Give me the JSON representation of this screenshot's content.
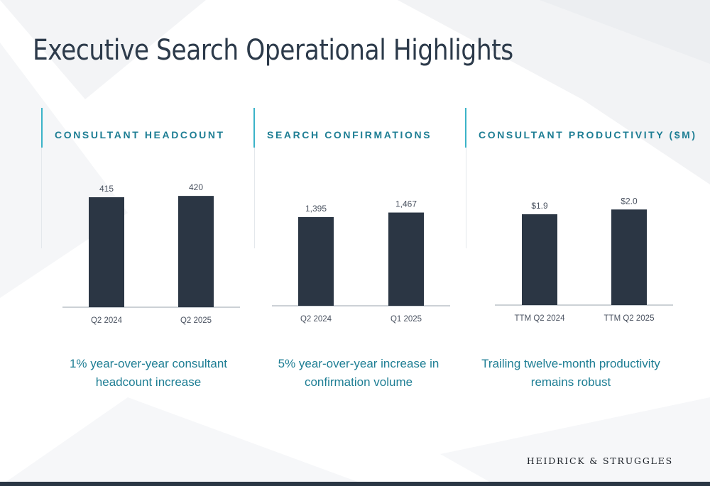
{
  "title": "Executive Search Operational Highlights",
  "colors": {
    "bar": "#2b3644",
    "accent": "#3bb3c8",
    "heading": "#1e7e94",
    "title": "#2c3a4a",
    "axis": "#9aa3ad",
    "label": "#4a5260"
  },
  "chart_data": [
    {
      "type": "bar",
      "title": "CONSULTANT HEADCOUNT",
      "categories": [
        "Q2 2024",
        "Q2 2025"
      ],
      "values": [
        415,
        420
      ],
      "value_labels": [
        "415",
        "420"
      ],
      "caption": "1% year-over-year consultant headcount increase"
    },
    {
      "type": "bar",
      "title": "SEARCH CONFIRMATIONS",
      "categories": [
        "Q2 2024",
        "Q1 2025"
      ],
      "values": [
        1395,
        1467
      ],
      "value_labels": [
        "1,395",
        "1,467"
      ],
      "caption": "5% year-over-year increase in confirmation volume"
    },
    {
      "type": "bar",
      "title": "CONSULTANT PRODUCTIVITY ($M)",
      "categories": [
        "TTM Q2 2024",
        "TTM Q2 2025"
      ],
      "values": [
        1.9,
        2.0
      ],
      "value_labels": [
        "$1.9",
        "$2.0"
      ],
      "caption": "Trailing twelve-month productivity remains robust"
    }
  ],
  "footer": {
    "logo_text": "HEIDRICK & STRUGGLES"
  }
}
